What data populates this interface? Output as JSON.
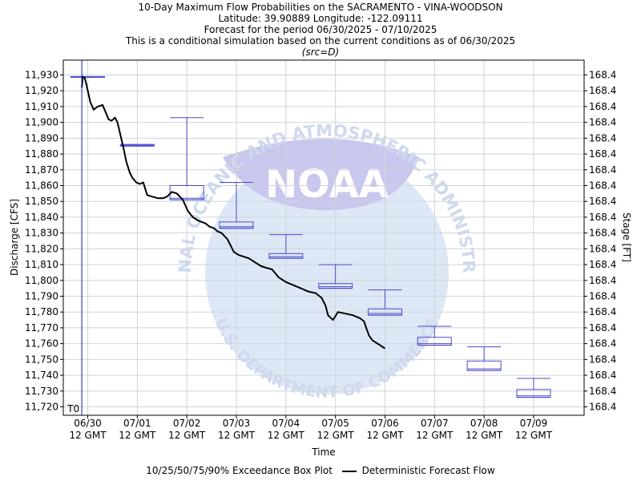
{
  "chart_data": {
    "type": "box",
    "title": "10-Day Maximum Flow Probabilities on the SACRAMENTO - VINA-WOODSON",
    "subtitle_lines": [
      "Latitude: 39.90889 Longitude: -122.09111",
      "Forecast for the period 06/30/2025 - 07/10/2025",
      "This is a conditional simulation based on the current conditions as of 06/30/2025",
      "(src=D)"
    ],
    "xlabel": "Time",
    "ylabel": "Discharge [CFS]",
    "y2label": "Stage [FT]",
    "ylim": [
      11715,
      11937
    ],
    "yticks": [
      11720,
      11730,
      11740,
      11750,
      11760,
      11770,
      11780,
      11790,
      11800,
      11810,
      11820,
      11830,
      11840,
      11850,
      11860,
      11870,
      11880,
      11890,
      11900,
      11910,
      11920,
      11930
    ],
    "ytick_labels": [
      "11,720",
      "11,730",
      "11,740",
      "11,750",
      "11,760",
      "11,770",
      "11,780",
      "11,790",
      "11,800",
      "11,810",
      "11,820",
      "11,830",
      "11,840",
      "11,850",
      "11,860",
      "11,870",
      "11,880",
      "11,890",
      "11,900",
      "11,910",
      "11,920",
      "11,930"
    ],
    "y2tick_labels": [
      "168.4",
      "168.4",
      "168.4",
      "168.4",
      "168.4",
      "168.4",
      "168.4",
      "168.4",
      "168.4",
      "168.4",
      "168.4",
      "168.4",
      "168.4",
      "168.4",
      "168.4",
      "168.4",
      "168.4",
      "168.4",
      "168.4",
      "168.4",
      "168.4",
      "168.4"
    ],
    "xlim": [
      0,
      10
    ],
    "xticks": [
      0,
      1,
      2,
      3,
      4,
      5,
      6,
      7,
      8,
      9
    ],
    "xtick_labels": [
      "06/30\n12 GMT",
      "07/01\n12 GMT",
      "07/02\n12 GMT",
      "07/03\n12 GMT",
      "07/04\n12 GMT",
      "07/05\n12 GMT",
      "07/06\n12 GMT",
      "07/07\n12 GMT",
      "07/08\n12 GMT",
      "07/09\n12 GMT"
    ],
    "t0_label": "T0",
    "t0_x": -0.12,
    "boxes": [
      {
        "x": 0,
        "p10": 11929,
        "p25": 11929,
        "p50": 11929,
        "p75": 11929,
        "p90": 11929
      },
      {
        "x": 1,
        "p10": 11885,
        "p25": 11885,
        "p50": 11885.5,
        "p75": 11886,
        "p90": 11886
      },
      {
        "x": 2,
        "p10": 11851,
        "p25": 11851,
        "p50": 11852,
        "p75": 11860,
        "p90": 11903
      },
      {
        "x": 3,
        "p10": 11833,
        "p25": 11833,
        "p50": 11834,
        "p75": 11837,
        "p90": 11862
      },
      {
        "x": 4,
        "p10": 11814,
        "p25": 11814,
        "p50": 11815,
        "p75": 11817,
        "p90": 11829
      },
      {
        "x": 5,
        "p10": 11795,
        "p25": 11795,
        "p50": 11796,
        "p75": 11798,
        "p90": 11810
      },
      {
        "x": 6,
        "p10": 11778,
        "p25": 11778,
        "p50": 11779,
        "p75": 11782,
        "p90": 11794
      },
      {
        "x": 7,
        "p10": 11759,
        "p25": 11759,
        "p50": 11760,
        "p75": 11764,
        "p90": 11771
      },
      {
        "x": 8,
        "p10": 11743,
        "p25": 11743,
        "p50": 11744,
        "p75": 11749,
        "p90": 11758
      },
      {
        "x": 9,
        "p10": 11726,
        "p25": 11726,
        "p50": 11727,
        "p75": 11731,
        "p90": 11738
      }
    ],
    "series": [
      {
        "name": "Deterministic Forecast Flow",
        "x": [
          -0.12,
          -0.1,
          -0.06,
          -0.02,
          0.05,
          0.12,
          0.2,
          0.3,
          0.42,
          0.48,
          0.55,
          0.6,
          0.66,
          0.72,
          0.78,
          0.85,
          0.9,
          0.98,
          1.05,
          1.12,
          1.2,
          1.3,
          1.42,
          1.52,
          1.6,
          1.7,
          1.8,
          1.92,
          2.02,
          2.12,
          2.22,
          2.3,
          2.38,
          2.46,
          2.55,
          2.62,
          2.7,
          2.82,
          2.95,
          3.05,
          3.15,
          3.25,
          3.4,
          3.5,
          3.6,
          3.72,
          3.85,
          4.0,
          4.15,
          4.3,
          4.45,
          4.6,
          4.72,
          4.8,
          4.85,
          4.95,
          5.05,
          5.2,
          5.35,
          5.5,
          5.58,
          5.62,
          5.68,
          5.75,
          5.85,
          5.95,
          6.0
        ],
        "y": [
          11922,
          11929,
          11928,
          11923,
          11913,
          11908,
          11910,
          11911,
          11902,
          11901,
          11903,
          11900,
          11892,
          11884,
          11875,
          11868,
          11865,
          11862,
          11861,
          11862,
          11854,
          11853,
          11852,
          11852,
          11853,
          11856,
          11855,
          11851,
          11844,
          11840,
          11838,
          11837,
          11836,
          11834,
          11833,
          11831,
          11830,
          11826,
          11818,
          11816,
          11815,
          11814,
          11811,
          11809,
          11808,
          11807,
          11802,
          11799,
          11797,
          11795,
          11793,
          11792,
          11789,
          11784,
          11778,
          11775,
          11780,
          11779,
          11778,
          11776,
          11774,
          11770,
          11765,
          11762,
          11760,
          11758,
          11757
        ]
      }
    ],
    "legend": {
      "box_label": "10/25/50/75/90% Exceedance Box Plot",
      "line_label": "Deterministic Forecast Flow",
      "placement": "bottom-center"
    },
    "watermark": {
      "arc_text_top": "NATIONAL OCEANIC AND ATMOSPHERIC ADMINISTRATION",
      "arc_text_bottom": "U.S. DEPARTMENT OF COMMERCE",
      "logo_text": "NOAA"
    },
    "grid": true,
    "colors": {
      "box": "#4a4acd",
      "line": "#000000",
      "t0_line": "#1c1cb4",
      "grid": "#cfd4da",
      "watermark_light": "#dde7f5",
      "watermark_dark": "#c8c8ee"
    }
  }
}
